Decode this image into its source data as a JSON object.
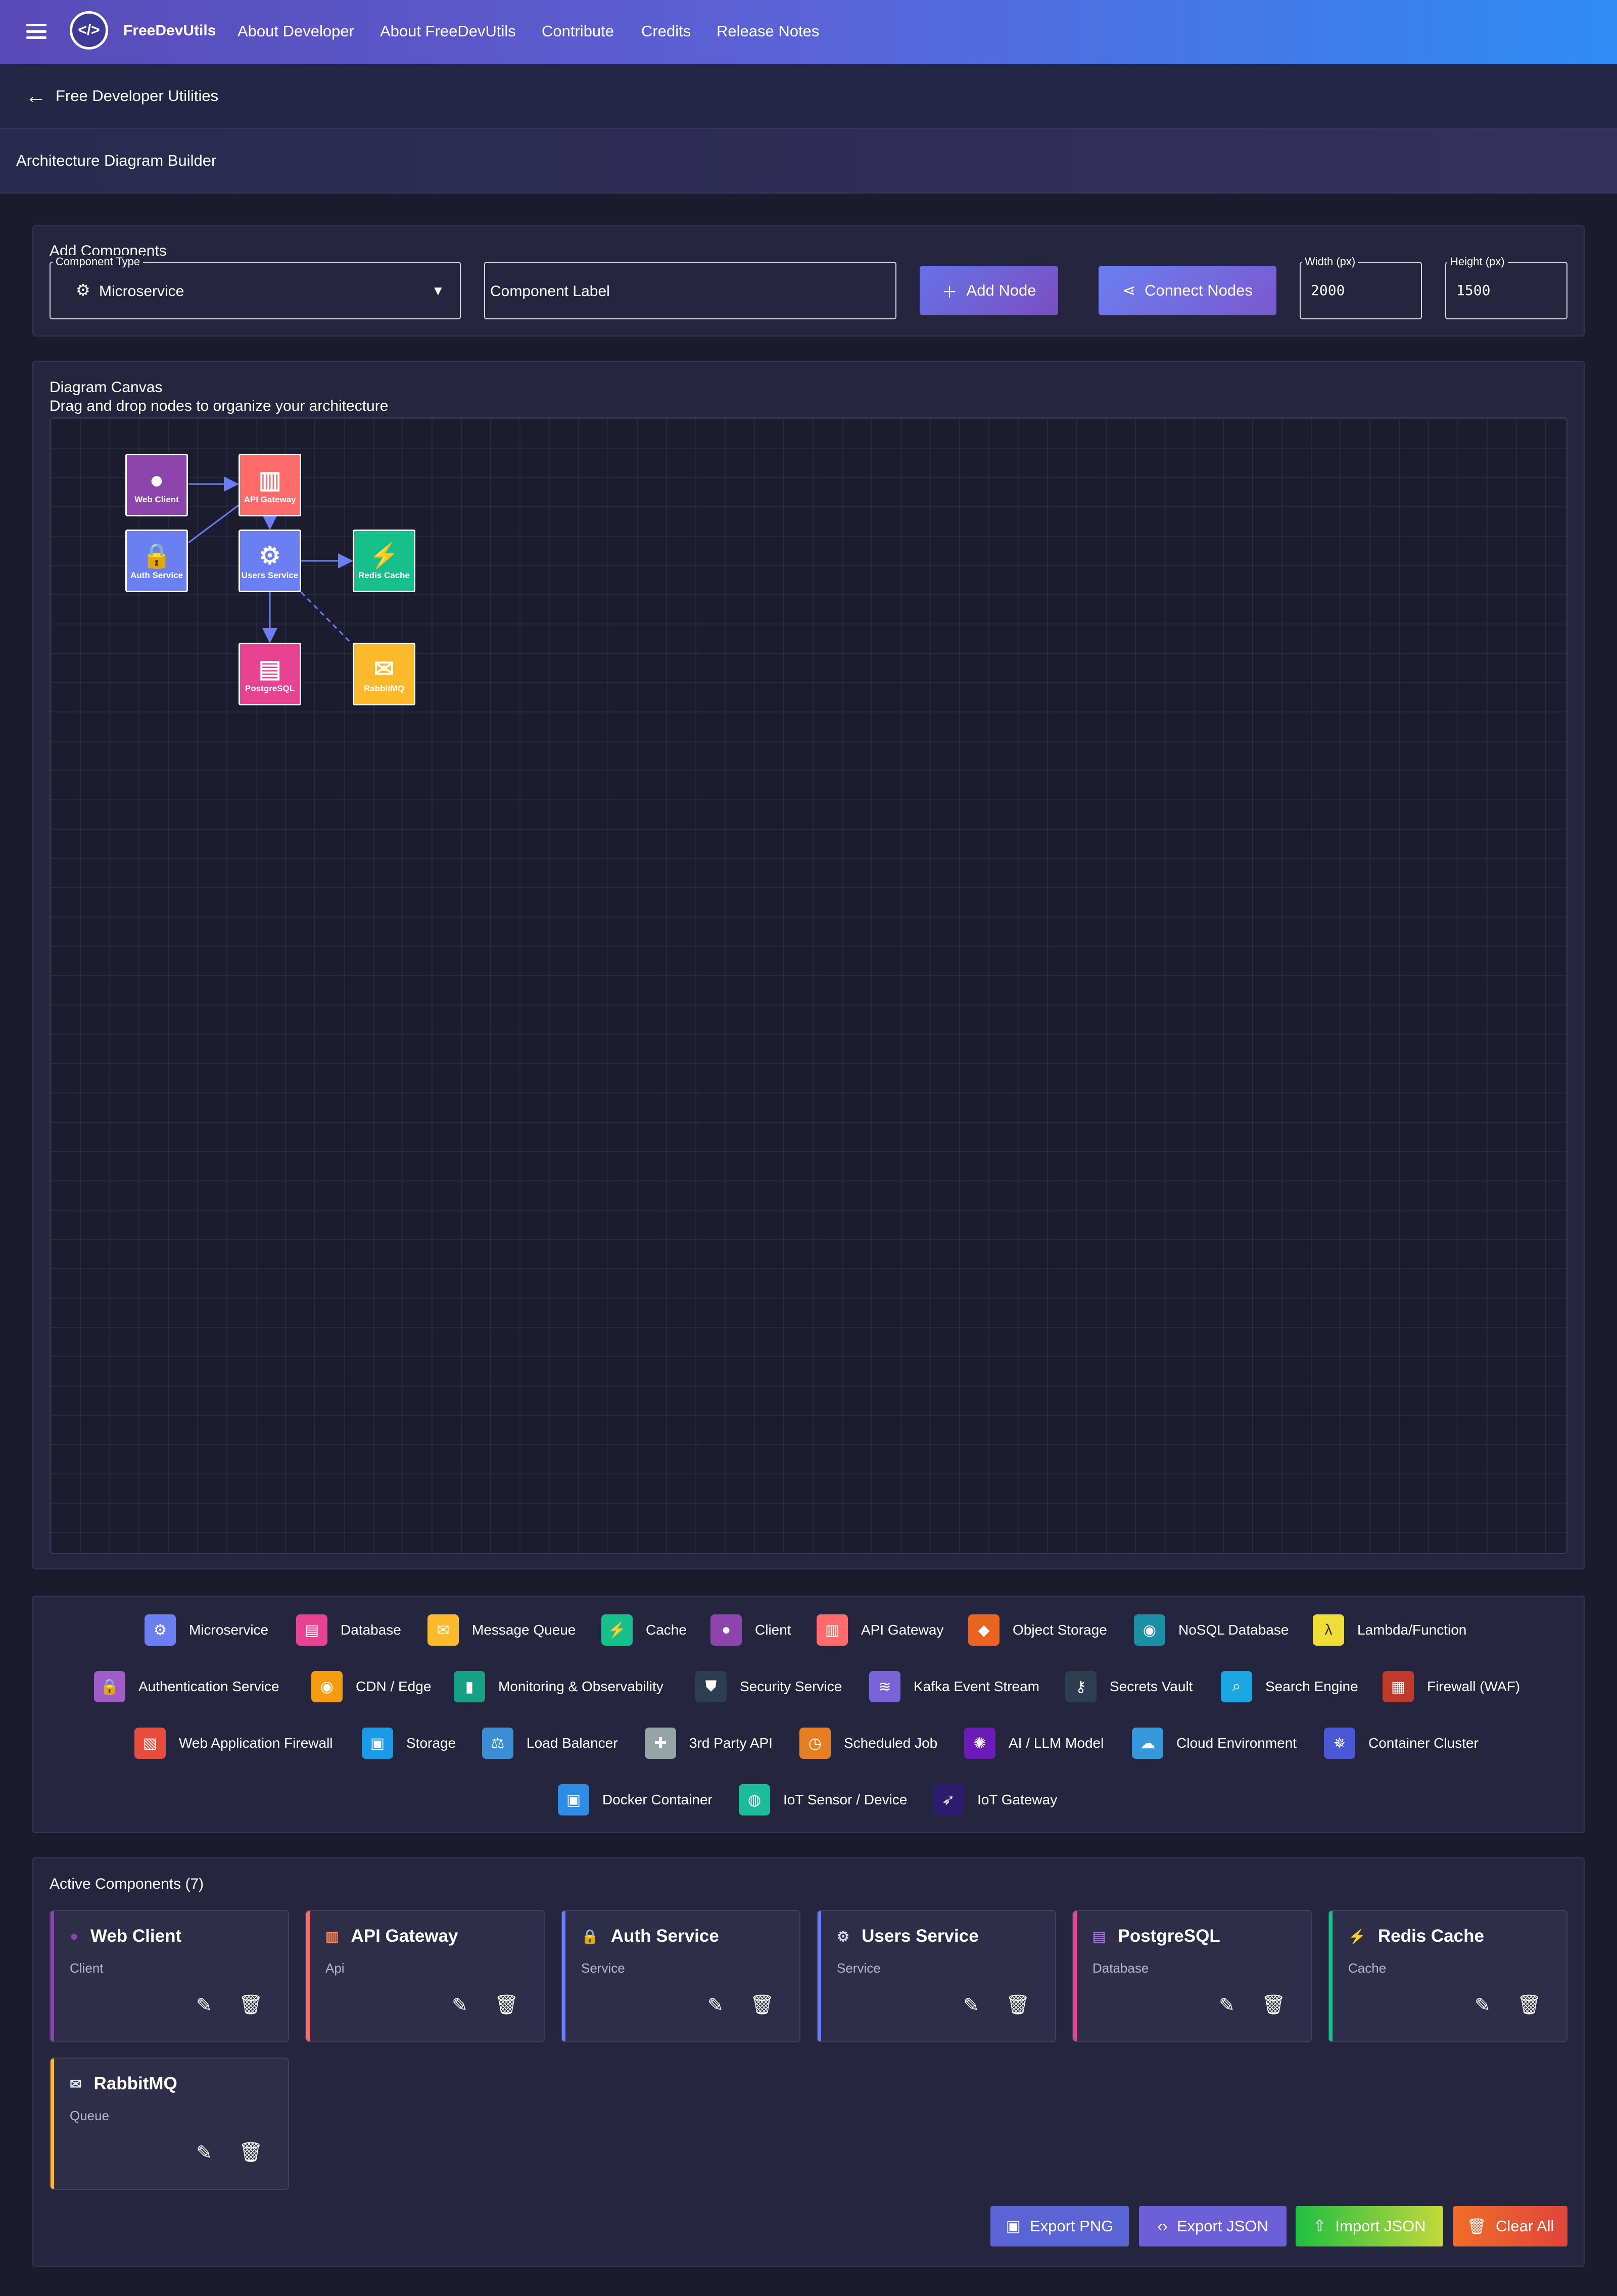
{
  "app": {
    "brand": "FreeDevUtils"
  },
  "nav": [
    "About Developer",
    "About FreeDevUtils",
    "Contribute",
    "Credits",
    "Release Notes"
  ],
  "breadcrumb": {
    "back_label": "Free Developer Utilities"
  },
  "page_title": "Architecture Diagram Builder",
  "add_components": {
    "title": "Add Components",
    "type_label": "Component Type",
    "type_value": "Microservice",
    "label_placeholder": "Component Label",
    "add_node": "Add Node",
    "connect_nodes": "Connect Nodes",
    "width_label": "Width (px)",
    "width_value": "2000",
    "height_label": "Height (px)",
    "height_value": "1500"
  },
  "canvas": {
    "title": "Diagram Canvas",
    "subtitle": "Drag and drop nodes to organize your architecture",
    "nodes": [
      {
        "label": "Web Client",
        "icon": "user-icon",
        "color": "#8e44ad"
      },
      {
        "label": "API Gateway",
        "icon": "gateway-icon",
        "color": "#ff6b6b"
      },
      {
        "label": "Auth Service",
        "icon": "lock-icon",
        "color": "#6c7ff2"
      },
      {
        "label": "Users Service",
        "icon": "gear-icon",
        "color": "#6c7ff2"
      },
      {
        "label": "Redis Cache",
        "icon": "bolt-icon",
        "color": "#17c08a"
      },
      {
        "label": "PostgreSQL",
        "icon": "database-icon",
        "color": "#e84393"
      },
      {
        "label": "RabbitMQ",
        "icon": "envelope-icon",
        "color": "#fdb92c"
      }
    ]
  },
  "palette": [
    {
      "label": "Microservice",
      "color": "#6c7ff2",
      "icon": "gear-icon",
      "glyph": "⚙"
    },
    {
      "label": "Database",
      "color": "#e84393",
      "icon": "database-icon",
      "glyph": "▤"
    },
    {
      "label": "Message Queue",
      "color": "#fdb92c",
      "icon": "envelope-icon",
      "glyph": "✉"
    },
    {
      "label": "Cache",
      "color": "#17c08a",
      "icon": "bolt-icon",
      "glyph": "⚡"
    },
    {
      "label": "Client",
      "color": "#8e44ad",
      "icon": "user-icon",
      "glyph": "●"
    },
    {
      "label": "API Gateway",
      "color": "#ff6b6b",
      "icon": "gateway-icon",
      "glyph": "▥"
    },
    {
      "label": "Object Storage",
      "color": "#e8641f",
      "icon": "cube-icon",
      "glyph": "◆"
    },
    {
      "label": "NoSQL Database",
      "color": "#1a8fa6",
      "icon": "globe-icon",
      "glyph": "◉"
    },
    {
      "label": "Lambda/Function",
      "color": "#f1dd38",
      "icon": "lambda-icon",
      "glyph": "λ"
    },
    {
      "label": "Authentication Service",
      "color": "#a05cc9",
      "icon": "lock-icon",
      "glyph": "🔒"
    },
    {
      "label": "CDN / Edge",
      "color": "#f39c12",
      "icon": "globe-icon",
      "glyph": "◉"
    },
    {
      "label": "Monitoring & Observability",
      "color": "#16a085",
      "icon": "chart-icon",
      "glyph": "▮"
    },
    {
      "label": "Security Service",
      "color": "#2c3e50",
      "icon": "shield-icon",
      "glyph": "⛊"
    },
    {
      "label": "Kafka Event Stream",
      "color": "#7a63d8",
      "icon": "stream-icon",
      "glyph": "≋"
    },
    {
      "label": "Secrets Vault",
      "color": "#2c3e50",
      "icon": "key-icon",
      "glyph": "⚷"
    },
    {
      "label": "Search Engine",
      "color": "#1aa6e0",
      "icon": "magnifier-icon",
      "glyph": "⌕"
    },
    {
      "label": "Firewall (WAF)",
      "color": "#c0392b",
      "icon": "brick-wall-icon",
      "glyph": "▦"
    },
    {
      "label": "Web Application Firewall",
      "color": "#e74c3c",
      "icon": "barrier-icon",
      "glyph": "▧"
    },
    {
      "label": "Storage",
      "color": "#1a9be8",
      "icon": "floppy-icon",
      "glyph": "▣"
    },
    {
      "label": "Load Balancer",
      "color": "#3a8fd4",
      "icon": "scales-icon",
      "glyph": "⚖"
    },
    {
      "label": "3rd Party API",
      "color": "#95a5a6",
      "icon": "puzzle-icon",
      "glyph": "✚"
    },
    {
      "label": "Scheduled Job",
      "color": "#e67e22",
      "icon": "clock-icon",
      "glyph": "◷"
    },
    {
      "label": "AI / LLM Model",
      "color": "#6a1bb8",
      "icon": "brain-icon",
      "glyph": "✺"
    },
    {
      "label": "Cloud Environment",
      "color": "#3498db",
      "icon": "cloud-icon",
      "glyph": "☁"
    },
    {
      "label": "Container Cluster",
      "color": "#4b58d6",
      "icon": "helm-icon",
      "glyph": "✵"
    },
    {
      "label": "Docker Container",
      "color": "#2d8ce6",
      "icon": "whale-icon",
      "glyph": "▣"
    },
    {
      "label": "IoT Sensor / Device",
      "color": "#1abc9c",
      "icon": "sensor-icon",
      "glyph": "◍"
    },
    {
      "label": "IoT Gateway",
      "color": "#2d1c6e",
      "icon": "rocket-icon",
      "glyph": "➶"
    }
  ],
  "active": {
    "title": "Active Components (7)",
    "cards": [
      {
        "name": "Web Client",
        "type": "Client",
        "color": "#8e44ad",
        "icon": "user-icon",
        "glyph": "●"
      },
      {
        "name": "API Gateway",
        "type": "Api",
        "color": "#ff6b6b",
        "icon": "gateway-icon",
        "glyph": "▥"
      },
      {
        "name": "Auth Service",
        "type": "Service",
        "color": "#6c7ff2",
        "icon": "lock-icon",
        "glyph": "🔒"
      },
      {
        "name": "Users Service",
        "type": "Service",
        "color": "#6c7ff2",
        "icon": "gear-icon",
        "glyph": "⚙"
      },
      {
        "name": "PostgreSQL",
        "type": "Database",
        "color": "#e84393",
        "icon": "database-icon",
        "glyph": "▤"
      },
      {
        "name": "Redis Cache",
        "type": "Cache",
        "color": "#17c08a",
        "icon": "bolt-icon",
        "glyph": "⚡"
      },
      {
        "name": "RabbitMQ",
        "type": "Queue",
        "color": "#fdb92c",
        "icon": "envelope-icon",
        "glyph": "✉"
      }
    ]
  },
  "actions": {
    "export_png": "Export PNG",
    "export_json": "Export JSON",
    "import_json": "Import JSON",
    "clear_all": "Clear All"
  }
}
